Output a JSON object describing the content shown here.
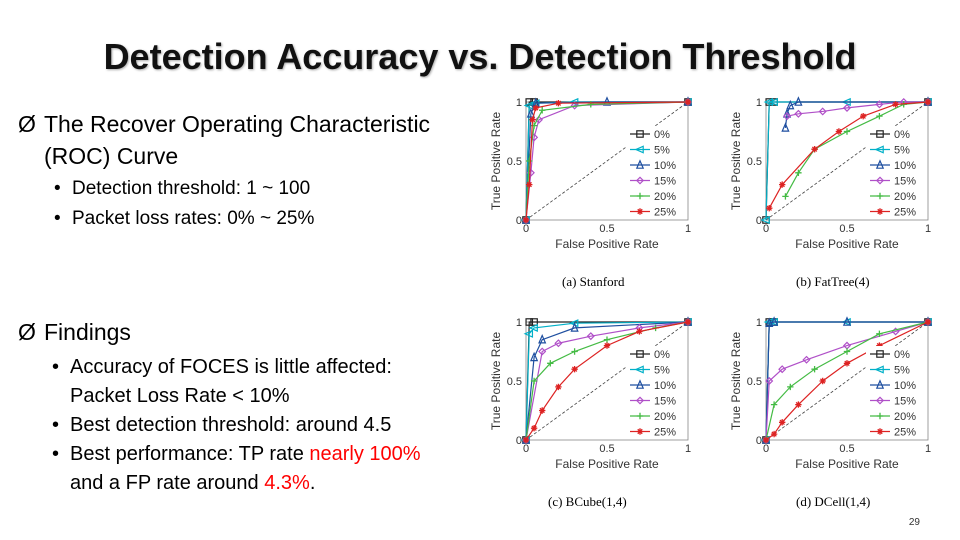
{
  "slide": {
    "title": "Detection Accuracy vs. Detection Threshold",
    "page_number": "29"
  },
  "roc": {
    "bullet_prefix": "Ø",
    "line1": "The Recover Operating Characteristic",
    "line2": "(ROC) Curve",
    "items": [
      "Detection threshold: 1 ~ 100",
      "Packet loss rates: 0% ~ 25%"
    ]
  },
  "findings": {
    "bullet_prefix": "Ø",
    "heading": "Findings",
    "item1_line1": "Accuracy of FOCES is little affected:",
    "item1_line2": "Packet Loss Rate < 10%",
    "item2": "Best detection threshold: around 4.5",
    "item3_prefix": "Best performance: TP rate ",
    "item3_red": "nearly 100%",
    "item3_line2_prefix": "and a FP rate around ",
    "item3_line2_red": "4.3%",
    "item3_line2_suffix": "."
  },
  "chart_data": [
    {
      "type": "line",
      "caption": "(a)  Stanford",
      "xlabel": "False Positive Rate",
      "ylabel": "True Positive Rate",
      "xlim": [
        0,
        1
      ],
      "ylim": [
        0,
        1
      ],
      "xticks": [
        "0",
        "0.5",
        "1"
      ],
      "yticks": [
        "0",
        "0.5",
        "1"
      ],
      "legend_position": "bottom-right",
      "series": [
        {
          "name": "0%",
          "color": "#222222",
          "marker": "square",
          "x": [
            0,
            0.02,
            0.05,
            1
          ],
          "y": [
            0,
            1,
            1,
            1
          ]
        },
        {
          "name": "5%",
          "color": "#00b0c8",
          "marker": "triangle-left",
          "x": [
            0,
            0.02,
            0.06,
            0.3,
            1
          ],
          "y": [
            0,
            0.97,
            0.99,
            1,
            1
          ]
        },
        {
          "name": "10%",
          "color": "#1f4fa0",
          "marker": "triangle",
          "x": [
            0,
            0.03,
            0.06,
            0.5,
            1
          ],
          "y": [
            0,
            0.9,
            0.99,
            1,
            1
          ]
        },
        {
          "name": "15%",
          "color": "#b050c8",
          "marker": "diamond",
          "x": [
            0,
            0.03,
            0.05,
            0.08,
            0.3,
            1
          ],
          "y": [
            0,
            0.4,
            0.7,
            0.85,
            0.97,
            1
          ]
        },
        {
          "name": "20%",
          "color": "#44bb44",
          "marker": "plus",
          "x": [
            0,
            0.02,
            0.05,
            0.1,
            0.4,
            1
          ],
          "y": [
            0,
            0.5,
            0.8,
            0.93,
            0.98,
            1
          ]
        },
        {
          "name": "25%",
          "color": "#dd2222",
          "marker": "star",
          "x": [
            0,
            0.02,
            0.04,
            0.06,
            0.2,
            1
          ],
          "y": [
            0,
            0.3,
            0.85,
            0.95,
            0.99,
            1
          ]
        }
      ]
    },
    {
      "type": "line",
      "caption": "(b)  FatTree(4)",
      "xlabel": "False Positive Rate",
      "ylabel": "True Positive Rate",
      "xlim": [
        0,
        1
      ],
      "ylim": [
        0,
        1
      ],
      "xticks": [
        "0",
        "0.5",
        "1"
      ],
      "yticks": [
        "0",
        "0.5",
        "1"
      ],
      "legend_position": "bottom-right",
      "series": [
        {
          "name": "0%",
          "color": "#222222",
          "marker": "square",
          "x": [
            0,
            0.02,
            0.05,
            1
          ],
          "y": [
            0,
            1,
            1,
            1
          ]
        },
        {
          "name": "5%",
          "color": "#00b0c8",
          "marker": "triangle-left",
          "x": [
            0,
            0.02,
            0.05,
            0.5,
            1
          ],
          "y": [
            0,
            1,
            1,
            1,
            1
          ]
        },
        {
          "name": "10%",
          "color": "#1f4fa0",
          "marker": "triangle",
          "x": [
            0.12,
            0.13,
            0.15,
            0.2,
            1
          ],
          "y": [
            0.78,
            0.9,
            0.97,
            1,
            1
          ]
        },
        {
          "name": "15%",
          "color": "#b050c8",
          "marker": "diamond",
          "x": [
            0.13,
            0.2,
            0.35,
            0.5,
            0.7,
            0.85,
            1
          ],
          "y": [
            0.88,
            0.9,
            0.92,
            0.95,
            0.98,
            1,
            1
          ]
        },
        {
          "name": "20%",
          "color": "#44bb44",
          "marker": "plus",
          "x": [
            0.12,
            0.2,
            0.3,
            0.5,
            0.7,
            0.85,
            1
          ],
          "y": [
            0.2,
            0.4,
            0.6,
            0.75,
            0.88,
            0.98,
            1
          ]
        },
        {
          "name": "25%",
          "color": "#dd2222",
          "marker": "star",
          "x": [
            0.02,
            0.1,
            0.3,
            0.45,
            0.6,
            0.8,
            1
          ],
          "y": [
            0.1,
            0.3,
            0.6,
            0.75,
            0.88,
            0.98,
            1
          ]
        }
      ]
    },
    {
      "type": "line",
      "caption": "(c)  BCube(1,4)",
      "xlabel": "False Positive Rate",
      "ylabel": "True Positive Rate",
      "xlim": [
        0,
        1
      ],
      "ylim": [
        0,
        1
      ],
      "xticks": [
        "0",
        "0.5",
        "1"
      ],
      "yticks": [
        "0",
        "0.5",
        "1"
      ],
      "legend_position": "bottom-right",
      "series": [
        {
          "name": "0%",
          "color": "#222222",
          "marker": "square",
          "x": [
            0,
            0.02,
            0.05,
            1
          ],
          "y": [
            0,
            1,
            1,
            1
          ]
        },
        {
          "name": "5%",
          "color": "#00b0c8",
          "marker": "triangle-left",
          "x": [
            0,
            0.02,
            0.05,
            0.3,
            1
          ],
          "y": [
            0,
            0.9,
            0.95,
            0.99,
            1
          ]
        },
        {
          "name": "10%",
          "color": "#1f4fa0",
          "marker": "triangle",
          "x": [
            0,
            0.05,
            0.1,
            0.3,
            1
          ],
          "y": [
            0,
            0.7,
            0.85,
            0.95,
            1
          ]
        },
        {
          "name": "15%",
          "color": "#b050c8",
          "marker": "diamond",
          "x": [
            0,
            0.1,
            0.2,
            0.4,
            0.7,
            1
          ],
          "y": [
            0,
            0.75,
            0.82,
            0.88,
            0.95,
            1
          ]
        },
        {
          "name": "20%",
          "color": "#44bb44",
          "marker": "plus",
          "x": [
            0,
            0.05,
            0.15,
            0.3,
            0.5,
            0.8,
            1
          ],
          "y": [
            0,
            0.5,
            0.65,
            0.75,
            0.85,
            0.95,
            1
          ]
        },
        {
          "name": "25%",
          "color": "#dd2222",
          "marker": "star",
          "x": [
            0,
            0.05,
            0.1,
            0.2,
            0.3,
            0.5,
            0.7,
            1
          ],
          "y": [
            0,
            0.1,
            0.25,
            0.45,
            0.6,
            0.8,
            0.92,
            1
          ]
        }
      ]
    },
    {
      "type": "line",
      "caption": "(d)  DCell(1,4)",
      "xlabel": "False Positive Rate",
      "ylabel": "True Positive Rate",
      "xlim": [
        0,
        1
      ],
      "ylim": [
        0,
        1
      ],
      "xticks": [
        "0",
        "0.5",
        "1"
      ],
      "yticks": [
        "0",
        "0.5",
        "1"
      ],
      "legend_position": "bottom-right",
      "series": [
        {
          "name": "0%",
          "color": "#222222",
          "marker": "square",
          "x": [
            0,
            0.02,
            0.05,
            1
          ],
          "y": [
            0,
            1,
            1,
            1
          ]
        },
        {
          "name": "5%",
          "color": "#00b0c8",
          "marker": "triangle-left",
          "x": [
            0,
            0.02,
            0.05,
            0.5,
            1
          ],
          "y": [
            0,
            1,
            1,
            1,
            1
          ]
        },
        {
          "name": "10%",
          "color": "#1f4fa0",
          "marker": "triangle",
          "x": [
            0,
            0.02,
            0.05,
            0.5,
            1
          ],
          "y": [
            0,
            0.99,
            1,
            1,
            1
          ]
        },
        {
          "name": "15%",
          "color": "#b050c8",
          "marker": "diamond",
          "x": [
            0,
            0.02,
            0.1,
            0.25,
            0.5,
            0.8,
            1
          ],
          "y": [
            0,
            0.5,
            0.6,
            0.68,
            0.8,
            0.92,
            1
          ]
        },
        {
          "name": "20%",
          "color": "#44bb44",
          "marker": "plus",
          "x": [
            0,
            0.05,
            0.15,
            0.3,
            0.5,
            0.7,
            1
          ],
          "y": [
            0,
            0.3,
            0.45,
            0.6,
            0.75,
            0.9,
            1
          ]
        },
        {
          "name": "25%",
          "color": "#dd2222",
          "marker": "star",
          "x": [
            0,
            0.05,
            0.1,
            0.2,
            0.35,
            0.5,
            0.7,
            1
          ],
          "y": [
            0,
            0.05,
            0.15,
            0.3,
            0.5,
            0.65,
            0.8,
            1
          ]
        }
      ]
    }
  ]
}
